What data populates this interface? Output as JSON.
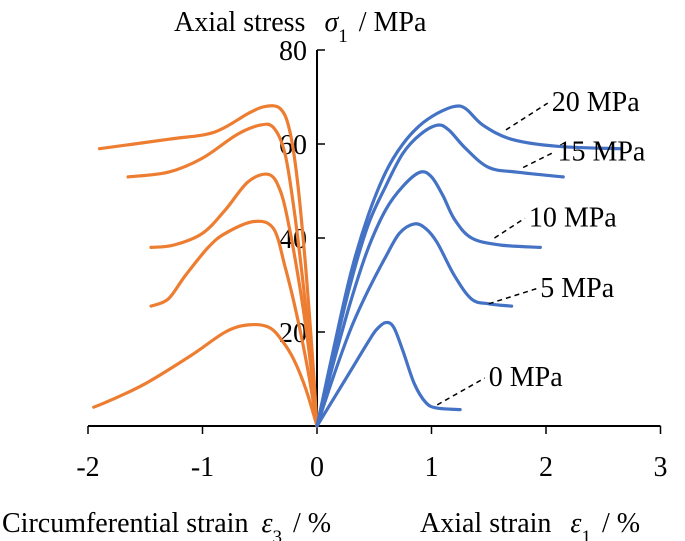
{
  "chart_data": {
    "type": "line",
    "title": "",
    "ylabel": {
      "text": "Axial stress",
      "symbol": "σ",
      "sub": "1",
      "unit": "/ MPa"
    },
    "xlabel_left": {
      "text": "Circumferential strain",
      "symbol": "ε",
      "sub": "3",
      "unit": "/ %"
    },
    "xlabel_right": {
      "text": "Axial strain",
      "symbol": "ε",
      "sub": "1",
      "unit": "/ %"
    },
    "xlim": [
      -2,
      3
    ],
    "ylim": [
      0,
      80
    ],
    "xticks": [
      {
        "value": -2,
        "label": "-2"
      },
      {
        "value": -1,
        "label": "-1"
      },
      {
        "value": 0,
        "label": "0"
      },
      {
        "value": 1,
        "label": "1"
      },
      {
        "value": 2,
        "label": "2"
      },
      {
        "value": 3,
        "label": "3"
      }
    ],
    "yticks": [
      {
        "value": 20,
        "label": "20"
      },
      {
        "value": 40,
        "label": "40"
      },
      {
        "value": 60,
        "label": "60"
      },
      {
        "value": 80,
        "label": "80"
      }
    ],
    "colors": {
      "axial": "#4472C4",
      "circumferential": "#ED7D31",
      "axis": "#000000"
    },
    "series": [
      {
        "name": "0 MPa",
        "axial": [
          [
            0,
            0
          ],
          [
            0.15,
            6
          ],
          [
            0.3,
            12
          ],
          [
            0.45,
            18
          ],
          [
            0.52,
            20.5
          ],
          [
            0.6,
            22
          ],
          [
            0.67,
            21
          ],
          [
            0.75,
            16
          ],
          [
            0.85,
            9
          ],
          [
            0.95,
            5
          ],
          [
            1.05,
            3.8
          ],
          [
            1.25,
            3.5
          ]
        ],
        "circumferential": [
          [
            0,
            0
          ],
          [
            -0.1,
            8
          ],
          [
            -0.2,
            14
          ],
          [
            -0.3,
            18
          ],
          [
            -0.42,
            21
          ],
          [
            -0.6,
            21.5
          ],
          [
            -0.8,
            20
          ],
          [
            -1.1,
            15
          ],
          [
            -1.5,
            9
          ],
          [
            -1.8,
            5.5
          ],
          [
            -1.95,
            4
          ]
        ],
        "label_value": [
          1.5,
          8.5
        ],
        "leader_from": [
          1.05,
          4.5
        ]
      },
      {
        "name": "5 MPa",
        "axial": [
          [
            0,
            0
          ],
          [
            0.15,
            11
          ],
          [
            0.3,
            21
          ],
          [
            0.45,
            29
          ],
          [
            0.6,
            36
          ],
          [
            0.72,
            41
          ],
          [
            0.85,
            43
          ],
          [
            0.95,
            42
          ],
          [
            1.05,
            39
          ],
          [
            1.2,
            32
          ],
          [
            1.35,
            27
          ],
          [
            1.5,
            26
          ],
          [
            1.7,
            25.5
          ]
        ],
        "circumferential": [
          [
            0,
            0
          ],
          [
            -0.08,
            12
          ],
          [
            -0.18,
            24
          ],
          [
            -0.28,
            34
          ],
          [
            -0.38,
            42
          ],
          [
            -0.55,
            43.5
          ],
          [
            -0.8,
            41
          ],
          [
            -0.95,
            38
          ],
          [
            -1.15,
            32
          ],
          [
            -1.3,
            27
          ],
          [
            -1.45,
            25.5
          ]
        ],
        "label_value": [
          1.95,
          27.5
        ],
        "leader_from": [
          1.5,
          26
        ]
      },
      {
        "name": "10 MPa",
        "axial": [
          [
            0,
            0
          ],
          [
            0.15,
            14
          ],
          [
            0.3,
            27
          ],
          [
            0.45,
            38
          ],
          [
            0.6,
            46
          ],
          [
            0.75,
            51
          ],
          [
            0.9,
            54
          ],
          [
            1.0,
            53
          ],
          [
            1.1,
            49
          ],
          [
            1.2,
            44
          ],
          [
            1.35,
            40
          ],
          [
            1.6,
            38.5
          ],
          [
            1.95,
            38
          ]
        ],
        "circumferential": [
          [
            0,
            0
          ],
          [
            -0.06,
            14
          ],
          [
            -0.14,
            28
          ],
          [
            -0.24,
            42
          ],
          [
            -0.32,
            50
          ],
          [
            -0.42,
            53.5
          ],
          [
            -0.6,
            52
          ],
          [
            -0.8,
            46
          ],
          [
            -1.0,
            41
          ],
          [
            -1.25,
            38.5
          ],
          [
            -1.45,
            38
          ]
        ],
        "label_value": [
          1.85,
          42.5
        ],
        "leader_from": [
          1.55,
          40
        ]
      },
      {
        "name": "15 MPa",
        "axial": [
          [
            0,
            0
          ],
          [
            0.15,
            16
          ],
          [
            0.3,
            31
          ],
          [
            0.45,
            43
          ],
          [
            0.6,
            51
          ],
          [
            0.75,
            58
          ],
          [
            0.9,
            62
          ],
          [
            1.05,
            64
          ],
          [
            1.15,
            63
          ],
          [
            1.3,
            59
          ],
          [
            1.5,
            55
          ],
          [
            1.75,
            54
          ],
          [
            2.15,
            53
          ]
        ],
        "circumferential": [
          [
            0,
            0
          ],
          [
            -0.05,
            14
          ],
          [
            -0.12,
            30
          ],
          [
            -0.2,
            46
          ],
          [
            -0.28,
            58
          ],
          [
            -0.38,
            63.5
          ],
          [
            -0.5,
            64
          ],
          [
            -0.7,
            62
          ],
          [
            -1.0,
            57
          ],
          [
            -1.3,
            54
          ],
          [
            -1.65,
            53
          ]
        ],
        "label_value": [
          2.1,
          56.5
        ],
        "leader_from": [
          1.8,
          55
        ]
      },
      {
        "name": "20 MPa",
        "axial": [
          [
            0,
            0
          ],
          [
            0.15,
            17
          ],
          [
            0.3,
            33
          ],
          [
            0.45,
            45
          ],
          [
            0.6,
            54
          ],
          [
            0.75,
            60
          ],
          [
            0.9,
            64
          ],
          [
            1.05,
            66.5
          ],
          [
            1.2,
            68
          ],
          [
            1.3,
            67.5
          ],
          [
            1.45,
            64
          ],
          [
            1.7,
            61
          ],
          [
            2.1,
            59.5
          ],
          [
            2.65,
            59
          ]
        ],
        "circumferential": [
          [
            0,
            0
          ],
          [
            -0.04,
            15
          ],
          [
            -0.1,
            34
          ],
          [
            -0.17,
            52
          ],
          [
            -0.24,
            63
          ],
          [
            -0.32,
            67.5
          ],
          [
            -0.45,
            68
          ],
          [
            -0.6,
            66.5
          ],
          [
            -0.9,
            62.5
          ],
          [
            -1.3,
            61
          ],
          [
            -1.9,
            59
          ]
        ],
        "label_value": [
          2.05,
          67
        ],
        "leader_from": [
          1.65,
          63
        ]
      }
    ]
  }
}
